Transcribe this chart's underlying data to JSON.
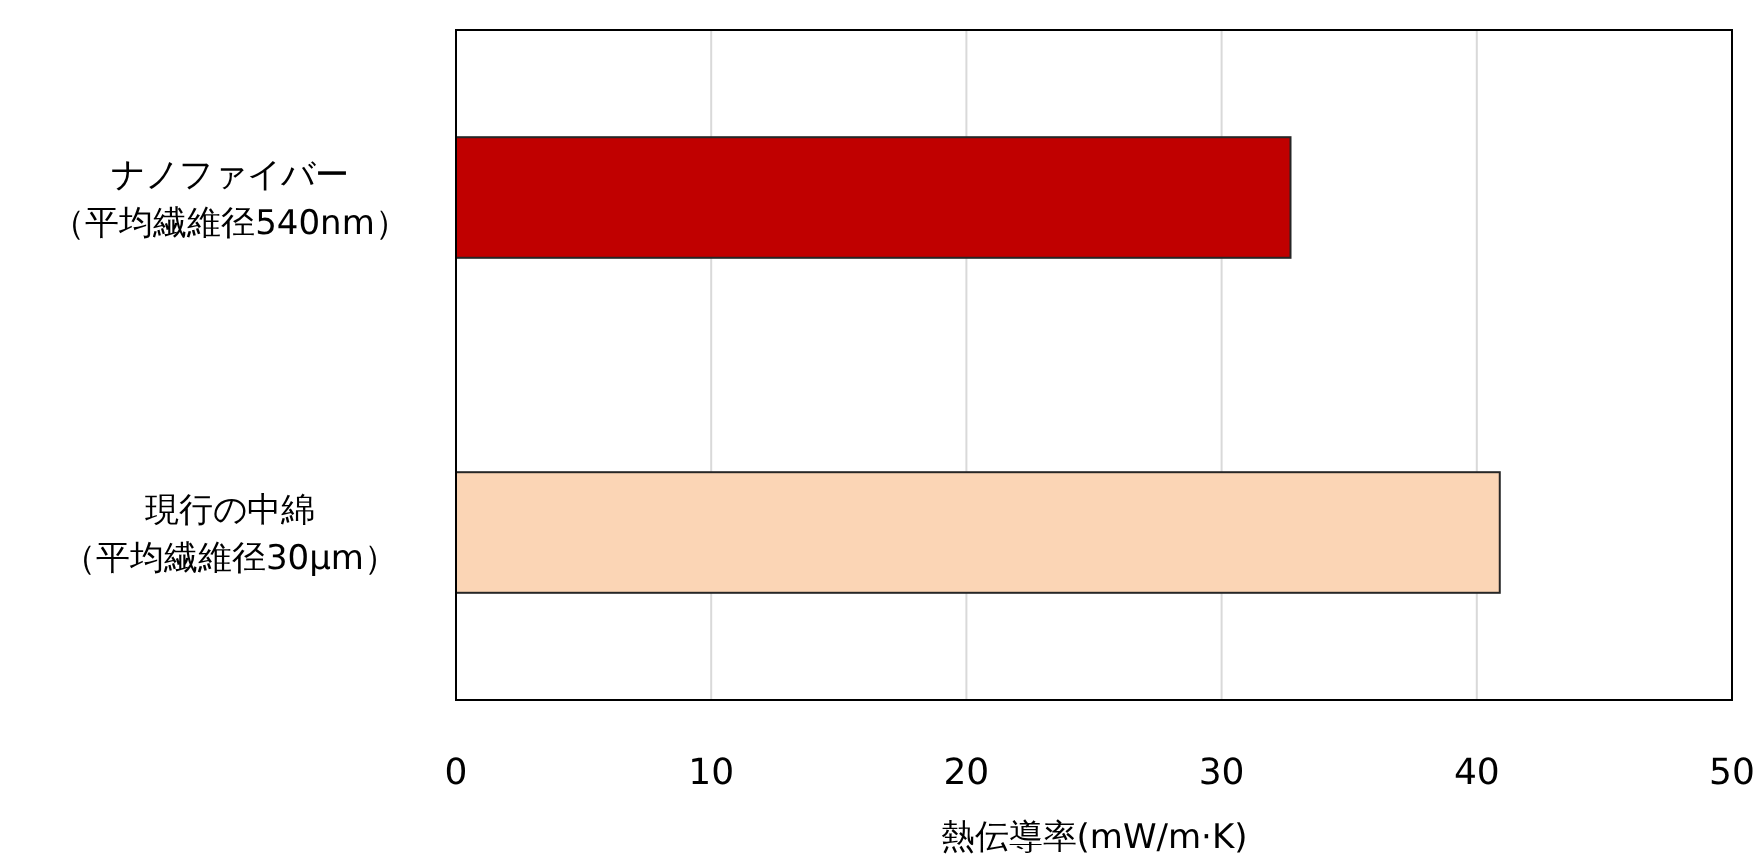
{
  "chart_data": {
    "type": "bar",
    "orientation": "horizontal",
    "categories": [
      "ナノファイバー（平均繊維径540nm）",
      "現行の中綿（平均繊維径30μm）"
    ],
    "values": [
      32.7,
      40.9
    ],
    "colors": [
      "#c00000",
      "#fbd5b5"
    ],
    "xlim": [
      0,
      50
    ],
    "xticks": [
      0,
      10,
      20,
      30,
      40,
      50
    ],
    "xlabel": "熱伝導率(mW/m·K)",
    "grid": "x"
  }
}
